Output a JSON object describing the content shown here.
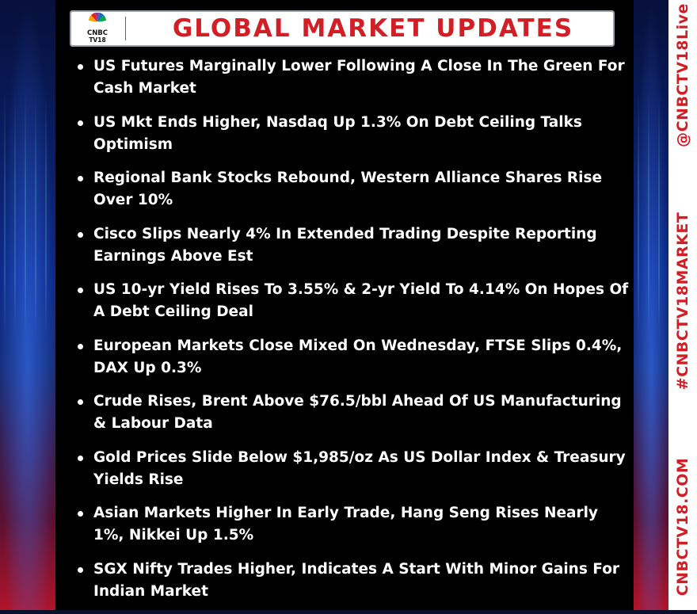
{
  "header": {
    "logo_line1": "CNBC",
    "logo_line2": "TV18",
    "title": "GLOBAL MARKET UPDATES"
  },
  "sidebar": {
    "handle": "@CNBCTV18Live",
    "hashtag": "#CNBCTV18MARKET",
    "website": "CNBCTV18.COM"
  },
  "colors": {
    "accent_red": "#d21f26",
    "panel": "#000000",
    "text": "#ffffff"
  },
  "updates": [
    "US Futures Marginally Lower Following A Close In The Green For Cash Market",
    "US Mkt Ends Higher, Nasdaq Up 1.3% On Debt Ceiling Talks Optimism",
    "Regional Bank Stocks Rebound, Western Alliance Shares Rise Over 10%",
    "Cisco Slips Nearly 4% In Extended Trading Despite Reporting Earnings Above Est",
    "US 10-yr Yield Rises To 3.55% & 2-yr Yield To 4.14% On Hopes Of A Debt Ceiling Deal",
    "European Markets Close Mixed On Wednesday, FTSE Slips 0.4%, DAX Up 0.3%",
    "Crude Rises, Brent Above $76.5/bbl Ahead Of US Manufacturing & Labour Data",
    "Gold Prices Slide Below $1,985/oz As US Dollar Index & Treasury Yields Rise",
    "Asian Markets Higher In Early Trade, Hang Seng Rises Nearly 1%, Nikkei Up 1.5%",
    "SGX Nifty Trades Higher, Indicates A Start With Minor Gains For Indian Market"
  ]
}
